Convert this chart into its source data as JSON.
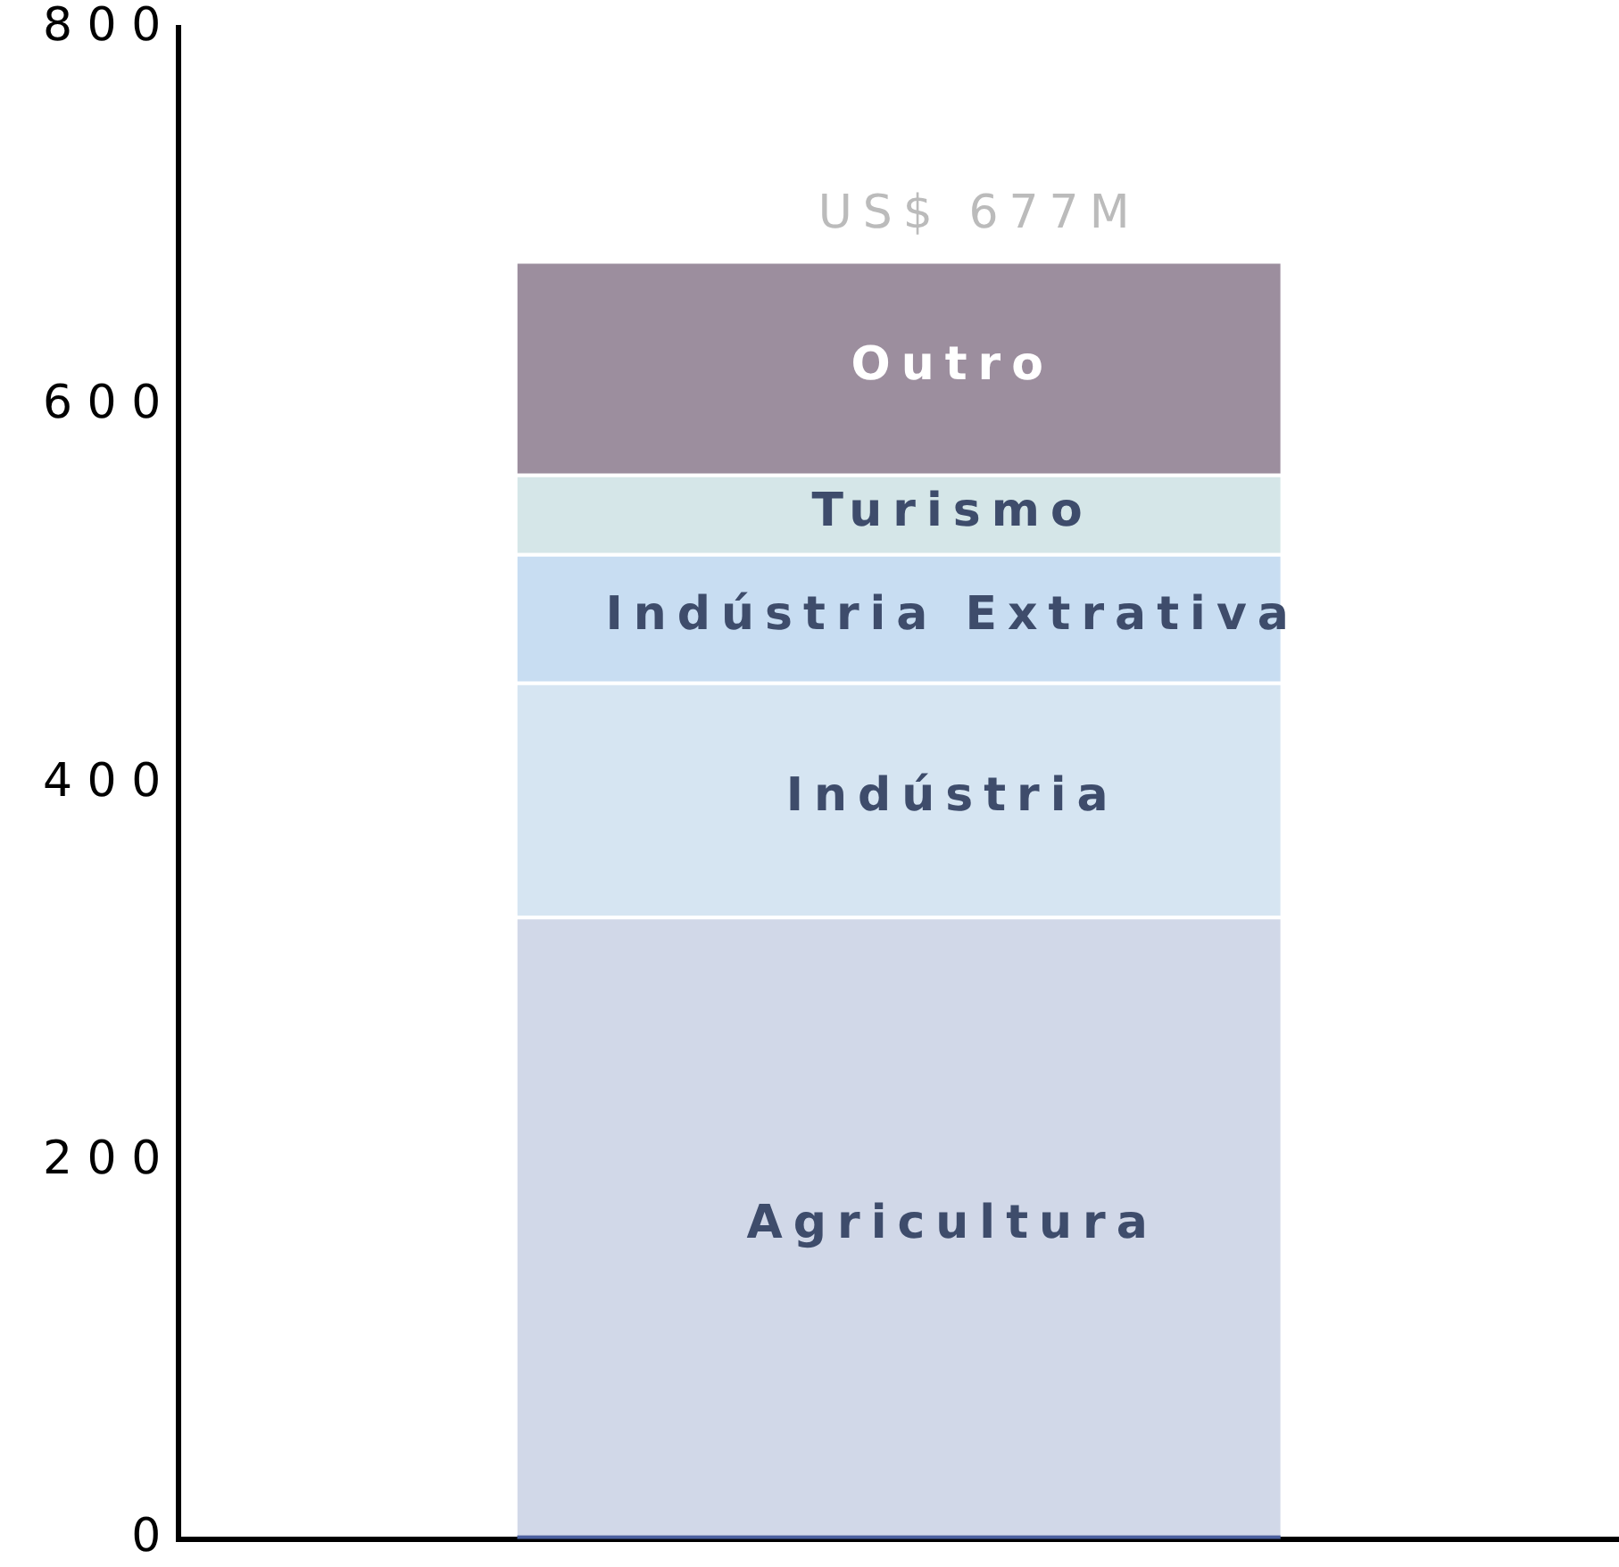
{
  "chart_data": {
    "type": "bar",
    "stacked": true,
    "categories": [
      null
    ],
    "series": [
      {
        "color": "#4a5f9e",
        "values": [
          2
        ]
      },
      {
        "name": "Agricultura",
        "color": "#d1d8e8",
        "values": [
          328
        ]
      },
      {
        "name": "Indústria",
        "color": "#d6e5f2",
        "values": [
          124
        ]
      },
      {
        "name": "Indústria Extrativa",
        "color": "#c8ddf2",
        "values": [
          68
        ]
      },
      {
        "name": "Turismo",
        "color": "#d5e6e8",
        "values": [
          42
        ]
      },
      {
        "name": "Outro",
        "color": "#9c8e9e",
        "values": [
          113
        ]
      }
    ],
    "totals": [
      "US$ 677M"
    ],
    "ylim": [
      0,
      800
    ],
    "yticks": [
      0,
      200,
      400,
      600,
      800
    ],
    "grid": false,
    "legend": false
  }
}
